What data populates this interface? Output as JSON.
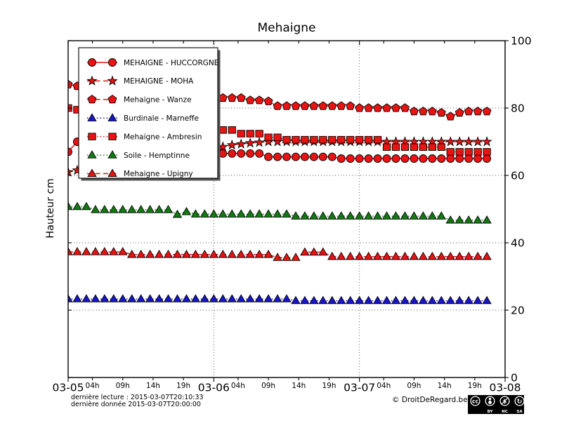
{
  "chart_data": {
    "type": "line",
    "title": "Mehaigne",
    "ylabel": "Hauteur cm",
    "ylim": [
      0,
      100
    ],
    "yticks": [
      0,
      20,
      40,
      60,
      80,
      100
    ],
    "grid_y": [
      20,
      40,
      60,
      80
    ],
    "grid_x_hours": [
      24,
      48
    ],
    "x_axis": {
      "range_hours": [
        0,
        72
      ],
      "day_ticks": [
        {
          "t": 0,
          "label": "03-05"
        },
        {
          "t": 24,
          "label": "03-06"
        },
        {
          "t": 48,
          "label": "03-07"
        },
        {
          "t": 72,
          "label": "03-08"
        }
      ],
      "hour_ticks": [
        {
          "t": 4,
          "label": "04h"
        },
        {
          "t": 9,
          "label": "09h"
        },
        {
          "t": 14,
          "label": "14h"
        },
        {
          "t": 19,
          "label": "19h"
        },
        {
          "t": 28,
          "label": "04h"
        },
        {
          "t": 33,
          "label": "09h"
        },
        {
          "t": 38,
          "label": "14h"
        },
        {
          "t": 43,
          "label": "19h"
        },
        {
          "t": 52,
          "label": "04h"
        },
        {
          "t": 57,
          "label": "09h"
        },
        {
          "t": 62,
          "label": "14h"
        },
        {
          "t": 67,
          "label": "19h"
        }
      ]
    },
    "sampling": {
      "start_hour": 0,
      "interval_hours": 1.5
    },
    "legend_position": "upper-left",
    "series": [
      {
        "name": "MEHAIGNE - HUCCORGNE",
        "color": "#e81313",
        "line": "solid",
        "marker": "circle",
        "values": [
          67,
          70,
          70,
          69.5,
          69,
          68.5,
          68.5,
          68,
          67.5,
          67,
          67,
          66.5,
          66,
          66,
          65.5,
          65.5,
          65,
          66.5,
          66.5,
          66.5,
          66.5,
          66.5,
          65.5,
          65.5,
          65.5,
          65.5,
          65.5,
          65.5,
          65.5,
          65.5,
          65,
          65,
          65,
          65,
          65,
          65,
          65,
          65,
          65,
          65,
          65,
          65,
          65,
          65,
          65,
          65,
          65
        ]
      },
      {
        "name": "MEHAIGNE - MOHA",
        "color": "#e81313",
        "line": "dashed",
        "marker": "star",
        "values": [
          61,
          61.5,
          62,
          62.5,
          63,
          63.5,
          64,
          64.5,
          65,
          65.5,
          66,
          66.5,
          67,
          67.3,
          67.6,
          67.8,
          68,
          68.5,
          69,
          69.3,
          69.6,
          69.8,
          70,
          70,
          70,
          70,
          70,
          70,
          70,
          70,
          70,
          70,
          70,
          70,
          70,
          70,
          70,
          70,
          70,
          70,
          70,
          70,
          70,
          70,
          70,
          70,
          70
        ]
      },
      {
        "name": "Mehaigne - Wanze",
        "color": "#e81313",
        "line": "dashed",
        "marker": "pentagon",
        "values": [
          87,
          86.5,
          86,
          85.5,
          85,
          84.8,
          84.5,
          84.2,
          84,
          83.8,
          83.6,
          83.4,
          83.3,
          83.2,
          83.1,
          83,
          83,
          83,
          83,
          83,
          82.3,
          82.3,
          82,
          80.6,
          80.6,
          80.6,
          80.6,
          80.6,
          80.6,
          80.6,
          80.6,
          80.6,
          80,
          80,
          80,
          80,
          80,
          80,
          79,
          79,
          79,
          78.6,
          77.5,
          78.6,
          79,
          79,
          79
        ]
      },
      {
        "name": "Burdinale - Marneffe",
        "color": "#1717c4",
        "line": "dotted",
        "marker": "triangle",
        "values": [
          23.3,
          23.3,
          23.3,
          23.3,
          23.3,
          23.3,
          23.3,
          23.3,
          23.3,
          23.3,
          23.3,
          23.3,
          23.3,
          23.3,
          23.3,
          23.3,
          23.3,
          23.3,
          23.3,
          23.3,
          23.3,
          23.3,
          23.3,
          23.3,
          23.3,
          22.8,
          22.8,
          22.8,
          22.8,
          22.8,
          22.8,
          22.8,
          22.8,
          22.8,
          22.8,
          22.8,
          22.8,
          22.8,
          22.8,
          22.8,
          22.8,
          22.8,
          22.8,
          22.8,
          22.8,
          22.8,
          22.8
        ]
      },
      {
        "name": "Mehaigne - Ambresin",
        "color": "#e81313",
        "line": "dotted",
        "marker": "square",
        "values": [
          80,
          79.5,
          79,
          78.5,
          78,
          77.5,
          77,
          76.5,
          76,
          75.7,
          75.3,
          75,
          74.7,
          74.5,
          74.2,
          74,
          73.5,
          73.5,
          73.5,
          72.4,
          72.4,
          72.4,
          71.3,
          71.3,
          70.6,
          70.6,
          70.6,
          70.6,
          70.6,
          70.6,
          70.6,
          70.6,
          70.6,
          70.6,
          70.6,
          68.4,
          68.4,
          68.4,
          68.4,
          68.4,
          68.4,
          68.4,
          67,
          67,
          67,
          67,
          67
        ]
      },
      {
        "name": "Soile - Hemptinne",
        "color": "#127a12",
        "line": "dotted",
        "marker": "triangle",
        "values": [
          50.7,
          50.7,
          50.7,
          49.8,
          49.8,
          49.8,
          49.8,
          49.8,
          49.8,
          49.8,
          49.8,
          49.8,
          48.4,
          49.2,
          48.5,
          48.5,
          48.5,
          48.5,
          48.5,
          48.5,
          48.5,
          48.5,
          48.5,
          48.5,
          48.5,
          47.9,
          47.9,
          47.9,
          47.9,
          47.9,
          47.9,
          47.9,
          47.9,
          47.9,
          47.9,
          47.9,
          47.9,
          47.9,
          47.9,
          47.9,
          47.9,
          47.9,
          46.7,
          46.7,
          46.7,
          46.7,
          46.7
        ]
      },
      {
        "name": "Mehaigne - Upigny",
        "color": "#e81313",
        "line": "dashed",
        "marker": "triangle",
        "values": [
          37.3,
          37.3,
          37.3,
          37.3,
          37.3,
          37.3,
          37.3,
          36.5,
          36.5,
          36.5,
          36.5,
          36.5,
          36.5,
          36.5,
          36.5,
          36.5,
          36.5,
          36.5,
          36.5,
          36.5,
          36.5,
          36.5,
          36.5,
          35.6,
          35.6,
          35.6,
          37.2,
          37.2,
          37.2,
          35.9,
          35.9,
          35.9,
          35.9,
          35.9,
          35.9,
          35.9,
          35.9,
          35.9,
          35.9,
          35.9,
          35.9,
          35.9,
          35.9,
          35.9,
          35.9,
          35.9,
          35.9
        ]
      }
    ]
  },
  "footer": {
    "derniere_lecture": "dernière lecture : 2015-03-07T20:10:33",
    "derniere_donnee": "dernière donnée  2015-03-07T20:00:00",
    "copyright": "© DroitDeRegard.be",
    "license": {
      "cc": "cc",
      "nc_glyph": "$",
      "sa_glyph": "↻",
      "by": "BY",
      "nc": "NC",
      "sa": "SA"
    }
  }
}
